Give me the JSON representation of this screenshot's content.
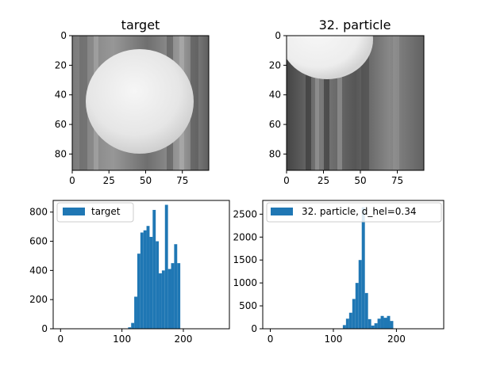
{
  "colors": {
    "bar": "#1f77b4",
    "axis": "#000000",
    "background": "#ffffff"
  },
  "chart_data": [
    {
      "type": "image",
      "title": "target",
      "xlim": [
        0,
        93
      ],
      "ylim": [
        91,
        0
      ],
      "xticks": [
        0,
        25,
        50,
        75
      ],
      "yticks": [
        0,
        20,
        40,
        60,
        80
      ],
      "image_description": "grayscale patch of a bright white sphere on a gray textured background"
    },
    {
      "type": "image",
      "title": "32. particle",
      "xlim": [
        0,
        93
      ],
      "ylim": [
        91,
        0
      ],
      "xticks": [
        0,
        25,
        50,
        75
      ],
      "yticks": [
        0,
        20,
        40,
        60,
        80
      ],
      "image_description": "grayscale patch with a partial bright sphere in the upper-left corner and dark vertical streaks"
    },
    {
      "type": "histogram",
      "xlim": [
        -12,
        275
      ],
      "ylim": [
        0,
        880
      ],
      "xticks": [
        0,
        100,
        200
      ],
      "yticks": [
        0,
        200,
        400,
        600,
        800
      ],
      "legend": {
        "location": "top-left",
        "label": "target"
      },
      "bins": [
        {
          "x0": 110,
          "x1": 115,
          "value": 10
        },
        {
          "x0": 115,
          "x1": 120,
          "value": 40
        },
        {
          "x0": 120,
          "x1": 125,
          "value": 220
        },
        {
          "x0": 125,
          "x1": 130,
          "value": 515
        },
        {
          "x0": 130,
          "x1": 135,
          "value": 660
        },
        {
          "x0": 135,
          "x1": 140,
          "value": 675
        },
        {
          "x0": 140,
          "x1": 145,
          "value": 705
        },
        {
          "x0": 145,
          "x1": 150,
          "value": 630
        },
        {
          "x0": 150,
          "x1": 155,
          "value": 815
        },
        {
          "x0": 155,
          "x1": 160,
          "value": 600
        },
        {
          "x0": 160,
          "x1": 165,
          "value": 380
        },
        {
          "x0": 165,
          "x1": 170,
          "value": 400
        },
        {
          "x0": 170,
          "x1": 175,
          "value": 850
        },
        {
          "x0": 175,
          "x1": 180,
          "value": 410
        },
        {
          "x0": 180,
          "x1": 185,
          "value": 450
        },
        {
          "x0": 185,
          "x1": 190,
          "value": 580
        },
        {
          "x0": 190,
          "x1": 195,
          "value": 450
        }
      ]
    },
    {
      "type": "histogram",
      "xlim": [
        -12,
        275
      ],
      "ylim": [
        0,
        2800
      ],
      "xticks": [
        0,
        100,
        200
      ],
      "yticks": [
        0,
        500,
        1000,
        1500,
        2000,
        2500
      ],
      "legend": {
        "location": "top-left",
        "label": "32. particle, d_hel=0.34"
      },
      "bins": [
        {
          "x0": 115,
          "x1": 120,
          "value": 80
        },
        {
          "x0": 120,
          "x1": 125,
          "value": 220
        },
        {
          "x0": 125,
          "x1": 130,
          "value": 350
        },
        {
          "x0": 130,
          "x1": 135,
          "value": 650
        },
        {
          "x0": 135,
          "x1": 140,
          "value": 1000
        },
        {
          "x0": 140,
          "x1": 145,
          "value": 1500
        },
        {
          "x0": 145,
          "x1": 150,
          "value": 2650
        },
        {
          "x0": 150,
          "x1": 155,
          "value": 780
        },
        {
          "x0": 155,
          "x1": 160,
          "value": 210
        },
        {
          "x0": 160,
          "x1": 165,
          "value": 70
        },
        {
          "x0": 165,
          "x1": 170,
          "value": 120
        },
        {
          "x0": 170,
          "x1": 175,
          "value": 220
        },
        {
          "x0": 175,
          "x1": 180,
          "value": 280
        },
        {
          "x0": 180,
          "x1": 185,
          "value": 240
        },
        {
          "x0": 185,
          "x1": 190,
          "value": 280
        },
        {
          "x0": 190,
          "x1": 195,
          "value": 170
        }
      ]
    }
  ]
}
